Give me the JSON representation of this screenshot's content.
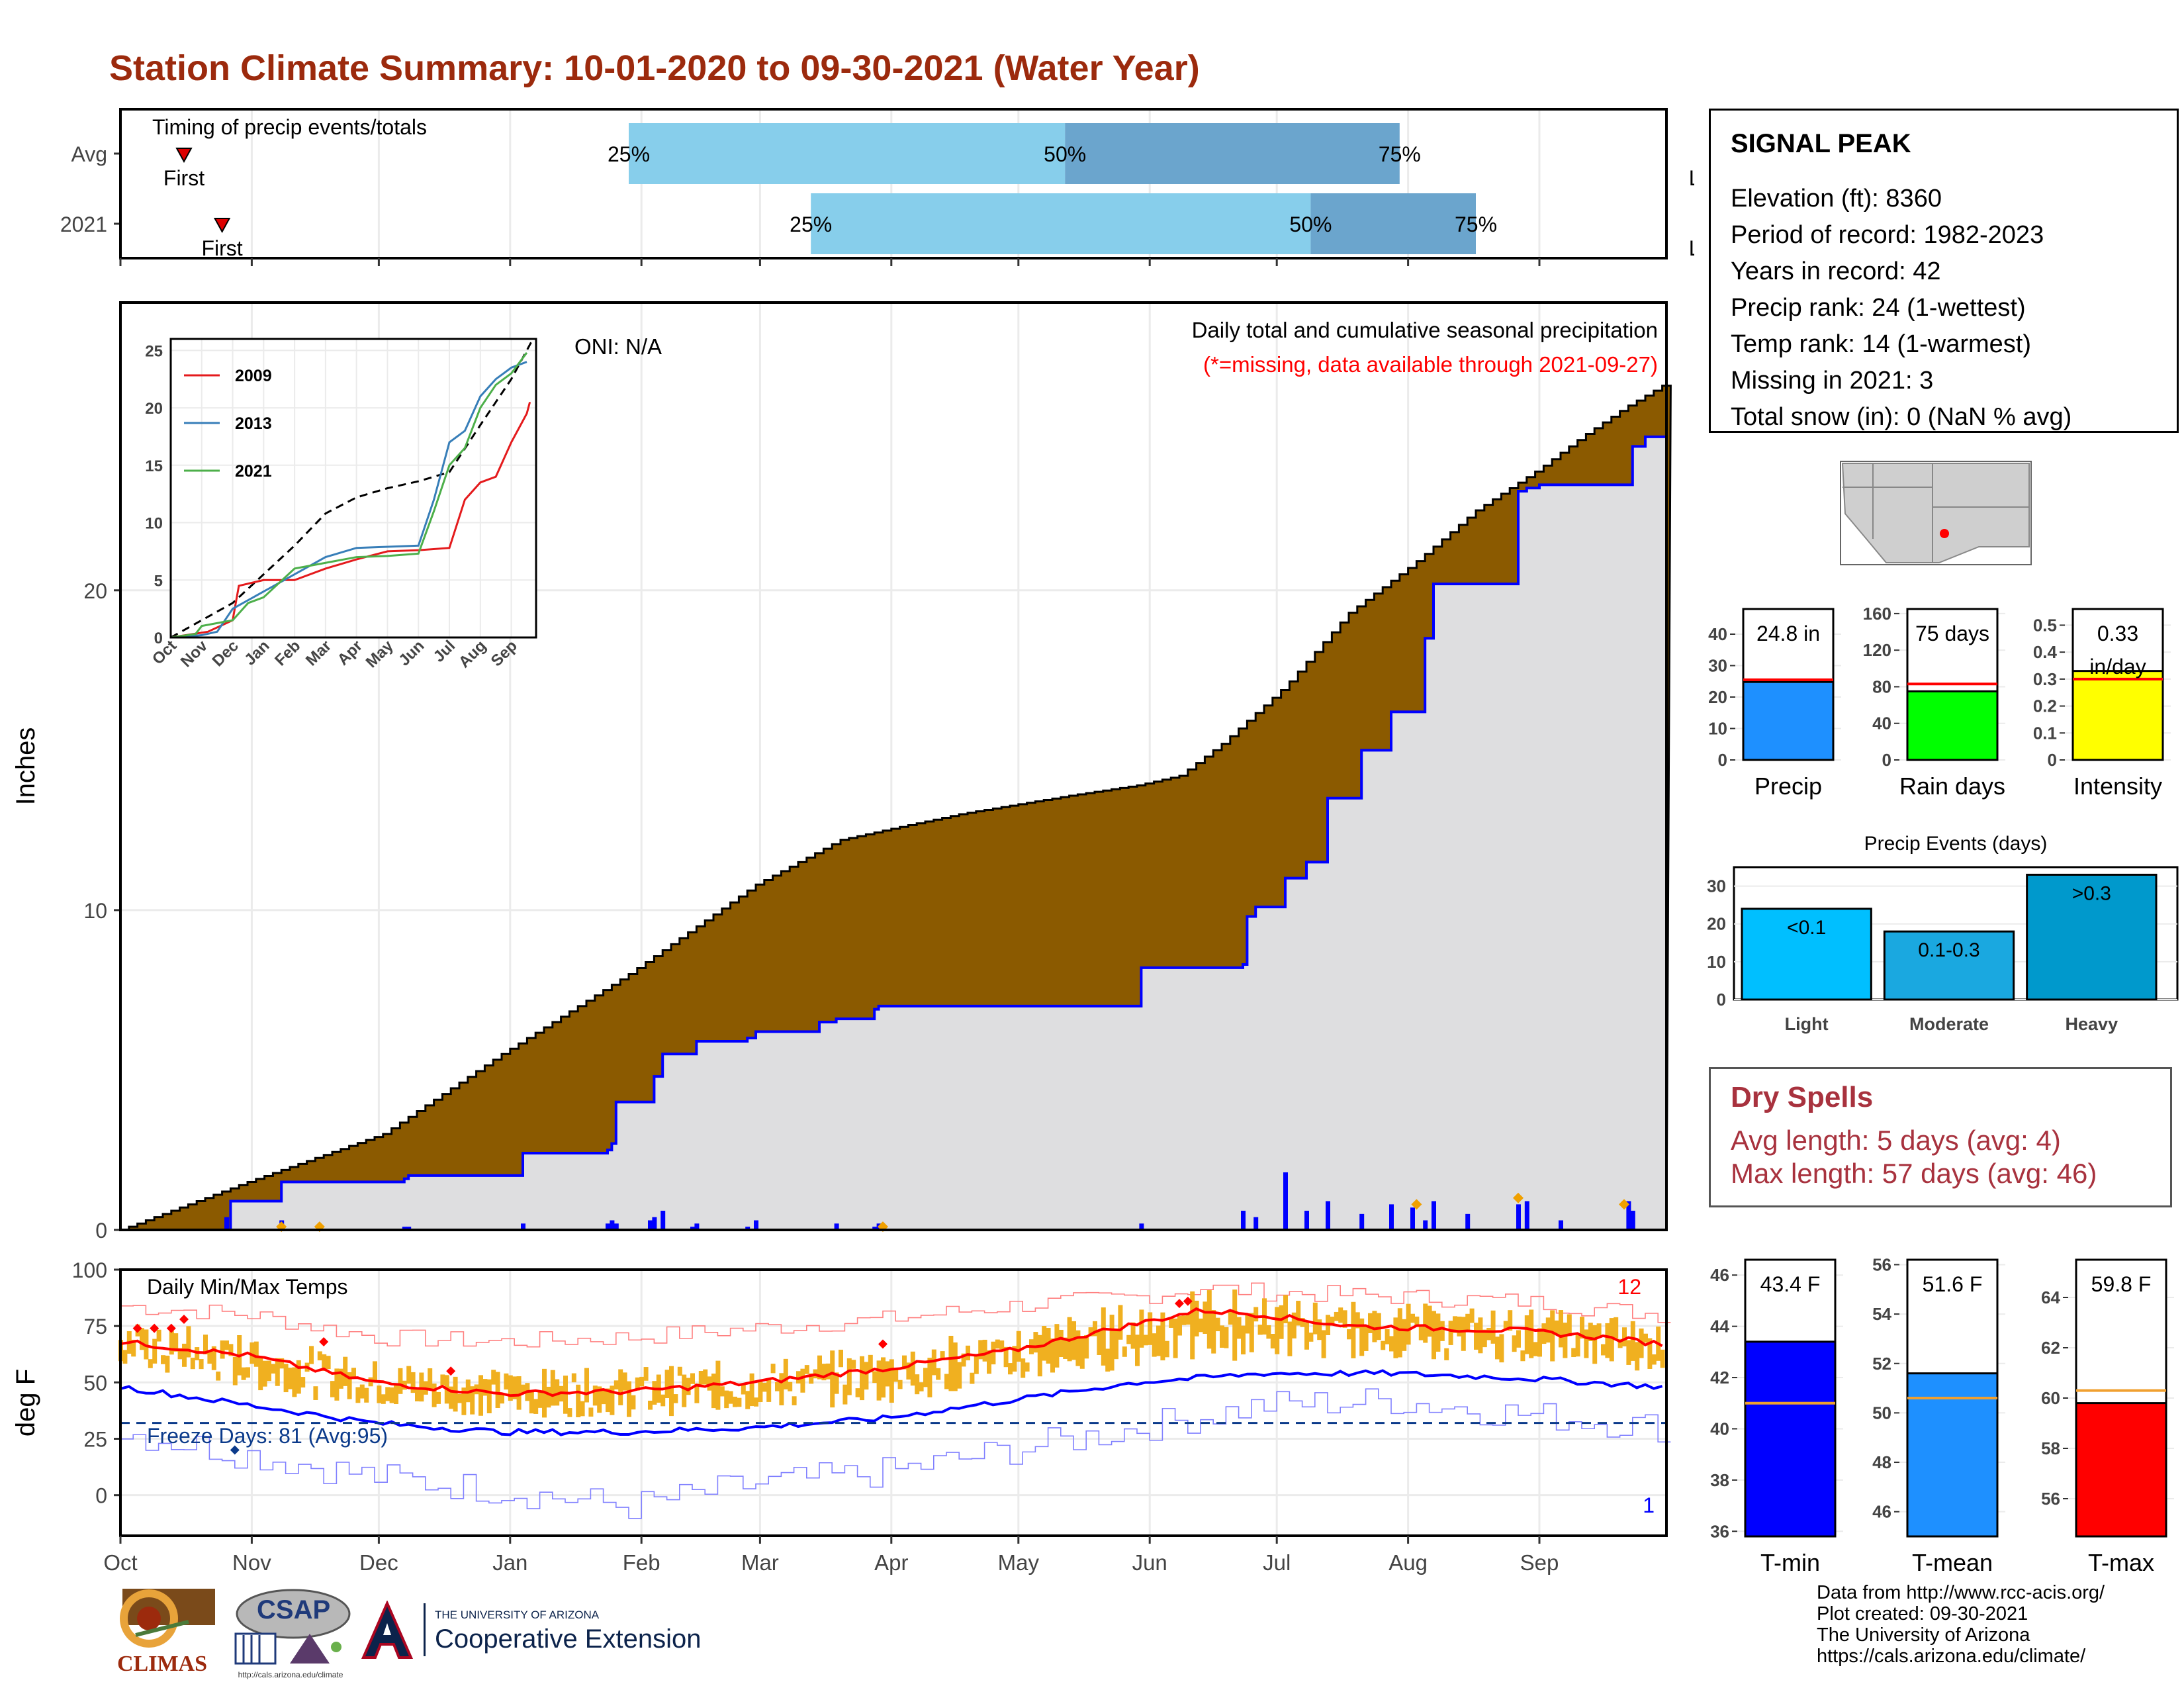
{
  "title": "Station Climate Summary: 10-01-2020 to 09-30-2021 (Water Year)",
  "station": {
    "name": "SIGNAL PEAK",
    "lines": [
      "Elevation (ft): 8360",
      "Period of record: 1982-2023",
      "Years in record: 42",
      "Precip rank: 24 (1-wettest)",
      "Temp rank: 14 (1-warmest)",
      "Missing in 2021: 3",
      "Total snow (in): 0 (NaN % avg)"
    ]
  },
  "colors": {
    "title": "#9c2a0d",
    "brown": "#8b5a00",
    "gray_fill": "#dedee0",
    "blue": "#0000ff",
    "light_blue": "#87ceeb",
    "mid_blue": "#6ba5cd",
    "red": "#ff0000",
    "orange": "#f0b020",
    "green": "#00ff00",
    "yellow": "#ffff00",
    "dodger": "#1e90ff",
    "dry_text": "#a8323e"
  },
  "month_labels": [
    "Oct",
    "Nov",
    "Dec",
    "Jan",
    "Feb",
    "Mar",
    "Apr",
    "May",
    "Jun",
    "Jul",
    "Aug",
    "Sep"
  ],
  "timing": {
    "label": "Timing of precip events/totals",
    "rows": [
      {
        "name": "Avg",
        "first_label": "First",
        "last_label": "Last",
        "first_day": 15,
        "last_day": 375,
        "p25_day": 120,
        "p50_day": 223,
        "p75_day": 302,
        "p25_label": "25%",
        "p50_label": "50%",
        "p75_label": "75%"
      },
      {
        "name": "2021",
        "first_label": "First",
        "last_label": "Last",
        "first_day": 24,
        "last_day": 375,
        "p25_day": 163,
        "p50_day": 281,
        "p75_day": 320,
        "p25_label": "25%",
        "p50_label": "50%",
        "p75_label": "75%"
      }
    ]
  },
  "chart_data": [
    {
      "type": "area",
      "name": "precip",
      "ylabel": "Inches",
      "note1": "Daily total and cumulative seasonal precipitation",
      "note2": "(*=missing, data available through 2021-09-27)",
      "oni": "ONI: N/A",
      "ylim": [
        0,
        29
      ],
      "yticks": [
        0,
        10,
        20
      ],
      "average_cumulative": {
        "day": [
          0,
          30,
          62,
          90,
          120,
          150,
          170,
          198,
          225,
          240,
          250,
          260,
          275,
          290,
          305,
          320,
          335,
          345,
          355,
          364
        ],
        "value": [
          0,
          1.5,
          3,
          5.5,
          8,
          10.8,
          12.2,
          13,
          13.6,
          13.9,
          14.2,
          15.2,
          17,
          19.3,
          20.8,
          22.5,
          23.8,
          24.8,
          25.7,
          26.4
        ]
      },
      "observed_cumulative": {
        "day": [
          0,
          25,
          26,
          38,
          67,
          68,
          95,
          115,
          116,
          117,
          125,
          126,
          128,
          135,
          136,
          148,
          150,
          165,
          169,
          178,
          179,
          240,
          241,
          265,
          266,
          268,
          275,
          280,
          285,
          293,
          300,
          308,
          310,
          330,
          332,
          335,
          340,
          356,
          357,
          360,
          364
        ],
        "value": [
          0,
          0,
          0.9,
          1.5,
          1.6,
          1.7,
          2.4,
          2.5,
          2.7,
          4,
          4,
          4.8,
          5.5,
          5.5,
          5.9,
          6,
          6.2,
          6.5,
          6.6,
          6.9,
          7,
          7,
          8.2,
          8.3,
          9.8,
          10.1,
          11,
          11.5,
          13.5,
          15,
          16.2,
          18.5,
          20.2,
          23.1,
          23.2,
          23.3,
          23.3,
          23.3,
          24.5,
          24.8,
          24.8
        ]
      },
      "daily_precip": {
        "day": [
          25,
          38,
          67,
          68,
          95,
          115,
          116,
          117,
          125,
          126,
          128,
          135,
          136,
          148,
          150,
          169,
          178,
          179,
          241,
          265,
          268,
          275,
          280,
          285,
          293,
          300,
          305,
          308,
          310,
          318,
          330,
          332,
          340,
          356,
          357
        ],
        "value": [
          0.4,
          0.3,
          0.1,
          0.1,
          0.2,
          0.2,
          0.3,
          0.2,
          0.3,
          0.4,
          0.6,
          0.1,
          0.2,
          0.1,
          0.3,
          0.2,
          0.1,
          0.2,
          0.2,
          0.6,
          0.4,
          1.8,
          0.6,
          0.9,
          0.5,
          0.8,
          0.7,
          0.3,
          0.9,
          0.5,
          0.8,
          0.9,
          0.3,
          0.9,
          0.6
        ]
      },
      "inset": {
        "type": "line",
        "xlabels": [
          "Oct",
          "Nov",
          "Dec",
          "Jan",
          "Feb",
          "Mar",
          "Apr",
          "May",
          "Jun",
          "Jul",
          "Aug",
          "Sep"
        ],
        "ylim": [
          0,
          26
        ],
        "yticks": [
          0,
          5,
          10,
          15,
          20,
          25
        ],
        "series": [
          {
            "name": "2009",
            "color": "#e41a1c",
            "months": [
              0,
              1.2,
              2,
              2.2,
              3,
              4,
              5,
              6,
              7,
              8,
              9,
              9.5,
              10,
              10.5,
              11,
              11.5,
              11.6
            ],
            "values": [
              0,
              0.5,
              1.5,
              4.5,
              5,
              5,
              6,
              6.8,
              7.5,
              7.6,
              7.8,
              12,
              13.5,
              14,
              17,
              19.5,
              20.5
            ]
          },
          {
            "name": "2013",
            "color": "#377eb8",
            "months": [
              0,
              1,
              1.5,
              2,
              3,
              4,
              5,
              6,
              7,
              8,
              8.5,
              9,
              9.5,
              10,
              10.5,
              11,
              11.5
            ],
            "values": [
              0,
              0.2,
              0.5,
              2.5,
              4,
              5.5,
              7,
              7.8,
              7.9,
              8,
              12,
              17,
              18,
              21,
              22.5,
              23.5,
              24
            ]
          },
          {
            "name": "2021",
            "color": "#4daf4a",
            "months": [
              0,
              0.8,
              1,
              2,
              2.5,
              3,
              4,
              5,
              6,
              7,
              8,
              8.5,
              9,
              9.5,
              10,
              10.5,
              11,
              11.5
            ],
            "values": [
              0,
              0.3,
              1,
              1.5,
              3,
              3.5,
              6,
              6.5,
              7,
              7.1,
              7.3,
              11,
              15,
              16.5,
              20,
              22,
              23,
              24.8
            ]
          }
        ],
        "average": {
          "months": [
            0,
            1,
            2,
            3,
            4,
            5,
            6,
            7,
            8,
            9,
            10,
            11,
            11.7
          ],
          "values": [
            0,
            1.5,
            3,
            5.5,
            8,
            10.8,
            12.2,
            13,
            13.6,
            14.4,
            18.5,
            22.5,
            26
          ]
        }
      }
    },
    {
      "type": "line",
      "name": "temperature",
      "label": "Daily Min/Max Temps",
      "ylabel": "deg F",
      "ylim": [
        -18,
        100
      ],
      "yticks": [
        0,
        25,
        50,
        75,
        100
      ],
      "freeze_line": 32,
      "freeze_label": "Freeze Days: 81 (Avg:95)",
      "count_high": "12",
      "count_low": "1",
      "avg_max": {
        "day": [
          0,
          30,
          60,
          90,
          120,
          150,
          180,
          210,
          240,
          255,
          270,
          290,
          310,
          330,
          350,
          364
        ],
        "value": [
          68,
          62,
          50,
          45,
          46,
          50,
          56,
          64,
          76,
          82,
          80,
          75,
          74,
          73,
          70,
          67
        ]
      },
      "avg_min": {
        "day": [
          0,
          30,
          60,
          90,
          120,
          150,
          180,
          210,
          240,
          270,
          300,
          330,
          364
        ],
        "value": [
          48,
          40,
          32,
          28,
          28,
          30,
          34,
          42,
          50,
          54,
          54,
          52,
          48
        ]
      },
      "record_max": {
        "day": [
          0,
          30,
          60,
          90,
          120,
          150,
          180,
          210,
          240,
          255,
          270,
          300,
          330,
          364
        ],
        "value": [
          84,
          80,
          70,
          68,
          70,
          74,
          78,
          84,
          88,
          92,
          90,
          88,
          86,
          80
        ]
      },
      "record_min": {
        "day": [
          0,
          30,
          60,
          90,
          120,
          150,
          180,
          210,
          240,
          270,
          300,
          330,
          364
        ],
        "value": [
          28,
          18,
          8,
          2,
          -5,
          5,
          10,
          20,
          30,
          40,
          42,
          36,
          30
        ]
      }
    },
    {
      "type": "bar",
      "name": "totals",
      "panels": [
        {
          "name": "Precip",
          "value_label": "24.8 in",
          "value": 24.8,
          "avg": 25.5,
          "ylim": [
            0,
            48
          ],
          "yticks": [
            0,
            10,
            20,
            30,
            40
          ],
          "color": "#1e90ff"
        },
        {
          "name": "Rain days",
          "value_label": "75 days",
          "value": 75,
          "avg": 83,
          "ylim": [
            0,
            165
          ],
          "yticks": [
            0,
            40,
            80,
            120,
            160
          ],
          "color": "#00ff00"
        },
        {
          "name": "Intensity",
          "value_label1": "0.33",
          "value_label2": "in/day",
          "value": 0.33,
          "avg": 0.3,
          "ylim": [
            0,
            0.56
          ],
          "yticks": [
            0.0,
            0.1,
            0.2,
            0.3,
            0.4,
            0.5
          ],
          "color": "#ffff00"
        }
      ]
    },
    {
      "type": "bar",
      "name": "precip_events",
      "title": "Precip Events (days)",
      "categories": [
        "Light",
        "Moderate",
        "Heavy"
      ],
      "bar_labels": [
        "<0.1",
        "0.1-0.3",
        ">0.3"
      ],
      "values": [
        24,
        18,
        33
      ],
      "ylim": [
        0,
        35
      ],
      "yticks": [
        0,
        10,
        20,
        30
      ]
    },
    {
      "type": "bar",
      "name": "temp_means",
      "panels": [
        {
          "name": "T-min",
          "value_label": "43.4 F",
          "value": 43.4,
          "avg": 41,
          "ylim": [
            35.8,
            46.6
          ],
          "yticks": [
            36,
            38,
            40,
            42,
            44,
            46
          ],
          "color": "#0000ff"
        },
        {
          "name": "T-mean",
          "value_label": "51.6 F",
          "value": 51.6,
          "avg": 50.6,
          "ylim": [
            45,
            56.2
          ],
          "yticks": [
            46,
            48,
            50,
            52,
            54,
            56
          ],
          "color": "#1e90ff"
        },
        {
          "name": "T-max",
          "value_label": "59.8 F",
          "value": 59.8,
          "avg": 60.3,
          "ylim": [
            54.5,
            65.5
          ],
          "yticks": [
            56,
            58,
            60,
            62,
            64
          ],
          "color": "#ff0000"
        }
      ]
    }
  ],
  "dry_spells": {
    "title": "Dry Spells",
    "avg_line": "Avg length: 5 days (avg: 4)",
    "max_line": "Max length: 57 days (avg: 46)"
  },
  "credits": [
    "Data from http://www.rcc-acis.org/",
    "Plot created: 09-30-2021",
    "The University of Arizona",
    "https://cals.arizona.edu/climate/"
  ],
  "logos": {
    "climas": "CLIMAS",
    "csap": "CSAP",
    "csap_url": "http://cals.arizona.edu/climate",
    "ua_top": "THE UNIVERSITY OF ARIZONA",
    "ua_main": "Cooperative Extension"
  }
}
